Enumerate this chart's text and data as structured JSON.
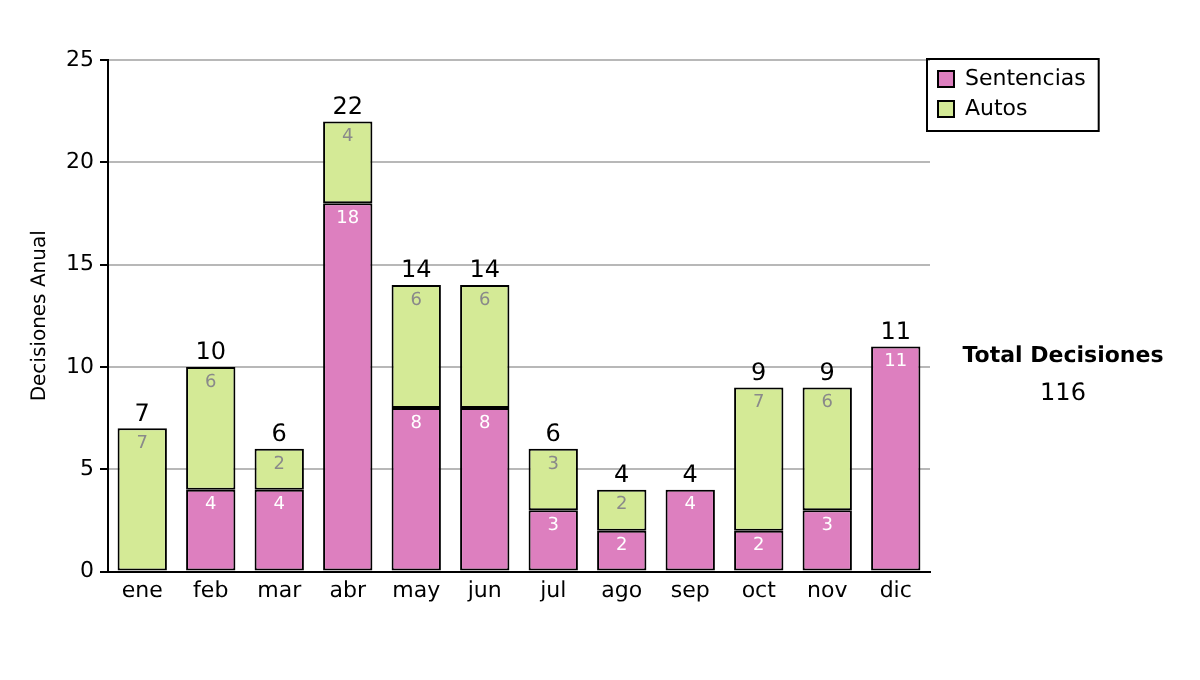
{
  "chart_data": {
    "type": "bar",
    "stacked": true,
    "ylabel": "Decisiones Anual",
    "categories": [
      "ene",
      "feb",
      "mar",
      "abr",
      "may",
      "jun",
      "jul",
      "ago",
      "sep",
      "oct",
      "nov",
      "dic"
    ],
    "series": [
      {
        "name": "Sentencias",
        "color": "#dd7fbf",
        "values": [
          0,
          4,
          4,
          18,
          8,
          8,
          3,
          2,
          4,
          2,
          3,
          11
        ],
        "value_labels": [
          null,
          "4",
          "4",
          "18",
          "8",
          "8",
          "3",
          "2",
          "4",
          "2",
          "3",
          "11"
        ]
      },
      {
        "name": "Autos",
        "color": "#d4ea96",
        "values": [
          7,
          6,
          2,
          4,
          6,
          6,
          3,
          2,
          0,
          7,
          6,
          0
        ],
        "value_labels": [
          "7",
          "6",
          "2",
          "4",
          "6",
          "6",
          "3",
          "2",
          null,
          "7",
          "6",
          null
        ]
      }
    ],
    "totals": [
      "7",
      "10",
      "6",
      "22",
      "14",
      "14",
      "6",
      "4",
      "4",
      "9",
      "9",
      "11"
    ],
    "ylim": [
      0,
      25
    ],
    "yticks": [
      0,
      5,
      10,
      15,
      20,
      25
    ],
    "grid": "y",
    "legend": "right",
    "annotations": [
      "Total Decisiones",
      "116"
    ]
  }
}
